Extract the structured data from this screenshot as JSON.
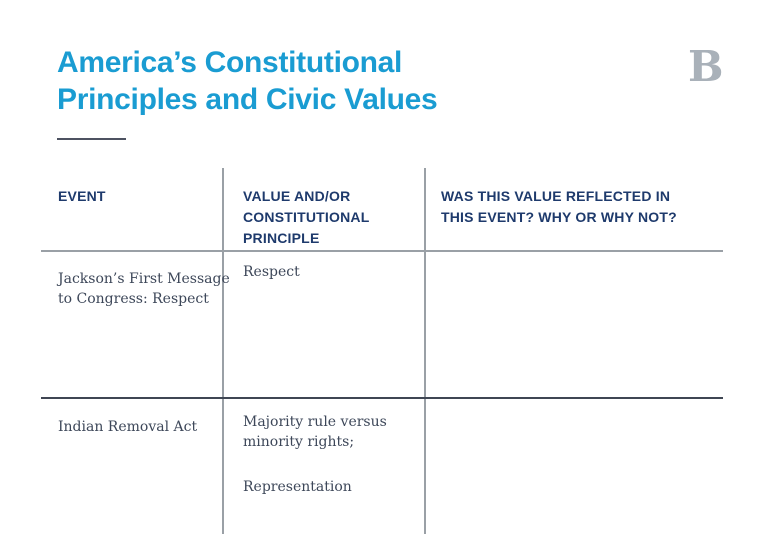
{
  "page": {
    "title_lines": [
      "America’s Constitutional",
      "Principles and Civic Values"
    ],
    "corner_letter": "B"
  },
  "colors": {
    "title": "#1a9cd2",
    "header_text": "#1e3a6c",
    "body_text": "#3d4759",
    "corner_letter": "#a9b1b9",
    "grid_line": "#9aa0a6",
    "row_divider": "#3f4653",
    "title_rule": "#4d5261"
  },
  "table": {
    "headers": {
      "event": "EVENT",
      "value": "VALUE AND/OR CONSTITUTIONAL PRINCIPLE",
      "reflected": "WAS THIS VALUE REFLECTED IN THIS EVENT? WHY OR WHY NOT?"
    },
    "rows": [
      {
        "event": "Jackson’s First Message to Congress: Respect",
        "value": "Respect",
        "value_2": "",
        "reflected": ""
      },
      {
        "event": "Indian Removal Act",
        "value": "Majority rule versus minority rights;",
        "value_2": "Representation",
        "reflected": ""
      }
    ]
  }
}
